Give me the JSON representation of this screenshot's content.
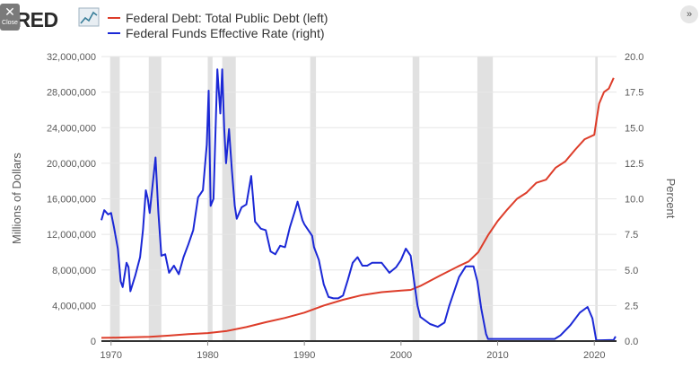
{
  "header": {
    "logo_text": "FRED",
    "close_label": "Close",
    "close_glyph": "✕",
    "expand_glyph": "»"
  },
  "chart_data": {
    "type": "line",
    "title": "",
    "xlabel": "",
    "ylabel_left": "Millions of Dollars",
    "ylabel_right": "Percent",
    "xlim": [
      1969.0,
      2022.3
    ],
    "ylim_left": [
      0,
      32000000
    ],
    "ylim_right": [
      0,
      20
    ],
    "x_ticks": [
      1970,
      1980,
      1990,
      2000,
      2010,
      2020
    ],
    "y_left_ticks": [
      "0",
      "4,000,000",
      "8,000,000",
      "12,000,000",
      "16,000,000",
      "20,000,000",
      "24,000,000",
      "28,000,000",
      "32,000,000"
    ],
    "y_right_ticks": [
      "0.0",
      "2.5",
      "5.0",
      "7.5",
      "10.0",
      "12.5",
      "15.0",
      "17.5",
      "20.0"
    ],
    "grid": true,
    "legend_position": "top-left",
    "recessions": [
      [
        1969.9,
        1970.9
      ],
      [
        1973.9,
        1975.2
      ],
      [
        1980.0,
        1980.5
      ],
      [
        1981.5,
        1982.9
      ],
      [
        1990.6,
        1991.2
      ],
      [
        2001.2,
        2001.9
      ],
      [
        2007.9,
        2009.5
      ],
      [
        2020.1,
        2020.35
      ]
    ],
    "series": [
      {
        "name": "Federal Debt: Total Public Debt (left)",
        "axis": "left",
        "color": "#dd3d2a",
        "points": [
          [
            1969,
            360000
          ],
          [
            1970,
            375000
          ],
          [
            1972,
            430000
          ],
          [
            1974,
            480000
          ],
          [
            1976,
            620000
          ],
          [
            1978,
            780000
          ],
          [
            1980,
            900000
          ],
          [
            1982,
            1140000
          ],
          [
            1984,
            1570000
          ],
          [
            1986,
            2120000
          ],
          [
            1988,
            2600000
          ],
          [
            1990,
            3200000
          ],
          [
            1992,
            4000000
          ],
          [
            1994,
            4640000
          ],
          [
            1996,
            5180000
          ],
          [
            1998,
            5500000
          ],
          [
            2000,
            5670000
          ],
          [
            2001,
            5750000
          ],
          [
            2002,
            6200000
          ],
          [
            2004,
            7350000
          ],
          [
            2006,
            8450000
          ],
          [
            2007,
            8950000
          ],
          [
            2008,
            10000000
          ],
          [
            2009,
            11900000
          ],
          [
            2010,
            13500000
          ],
          [
            2011,
            14800000
          ],
          [
            2012,
            16000000
          ],
          [
            2013,
            16700000
          ],
          [
            2014,
            17800000
          ],
          [
            2015,
            18150000
          ],
          [
            2016,
            19500000
          ],
          [
            2017,
            20200000
          ],
          [
            2018,
            21500000
          ],
          [
            2019,
            22700000
          ],
          [
            2020.0,
            23200000
          ],
          [
            2020.25,
            25000000
          ],
          [
            2020.5,
            26700000
          ],
          [
            2021,
            28000000
          ],
          [
            2021.5,
            28400000
          ],
          [
            2022,
            29600000
          ]
        ]
      },
      {
        "name": "Federal Funds Effective Rate (right)",
        "axis": "right",
        "color": "#1b28d6",
        "points": [
          [
            1969.0,
            8.5
          ],
          [
            1969.3,
            9.2
          ],
          [
            1969.7,
            8.9
          ],
          [
            1970.0,
            9.0
          ],
          [
            1970.3,
            8.0
          ],
          [
            1970.7,
            6.5
          ],
          [
            1971.0,
            4.2
          ],
          [
            1971.2,
            3.8
          ],
          [
            1971.6,
            5.5
          ],
          [
            1971.8,
            5.2
          ],
          [
            1972.0,
            3.5
          ],
          [
            1972.5,
            4.6
          ],
          [
            1973.0,
            5.9
          ],
          [
            1973.3,
            7.8
          ],
          [
            1973.6,
            10.6
          ],
          [
            1973.8,
            10.0
          ],
          [
            1974.0,
            9.0
          ],
          [
            1974.3,
            11.0
          ],
          [
            1974.6,
            12.9
          ],
          [
            1974.9,
            9.0
          ],
          [
            1975.2,
            6.0
          ],
          [
            1975.6,
            6.1
          ],
          [
            1976.0,
            4.8
          ],
          [
            1976.5,
            5.3
          ],
          [
            1977.0,
            4.7
          ],
          [
            1977.5,
            5.9
          ],
          [
            1978.0,
            6.8
          ],
          [
            1978.5,
            7.8
          ],
          [
            1979.0,
            10.1
          ],
          [
            1979.5,
            10.6
          ],
          [
            1979.9,
            13.8
          ],
          [
            1980.1,
            17.6
          ],
          [
            1980.3,
            9.5
          ],
          [
            1980.6,
            10.0
          ],
          [
            1980.9,
            17.0
          ],
          [
            1981.0,
            19.1
          ],
          [
            1981.3,
            16.0
          ],
          [
            1981.5,
            19.1
          ],
          [
            1981.7,
            15.0
          ],
          [
            1981.9,
            12.5
          ],
          [
            1982.2,
            14.9
          ],
          [
            1982.5,
            12.0
          ],
          [
            1982.8,
            9.5
          ],
          [
            1983.0,
            8.6
          ],
          [
            1983.5,
            9.4
          ],
          [
            1984.0,
            9.6
          ],
          [
            1984.5,
            11.6
          ],
          [
            1984.9,
            8.4
          ],
          [
            1985.5,
            7.9
          ],
          [
            1986.0,
            7.8
          ],
          [
            1986.5,
            6.3
          ],
          [
            1987.0,
            6.1
          ],
          [
            1987.5,
            6.7
          ],
          [
            1988.0,
            6.6
          ],
          [
            1988.5,
            8.0
          ],
          [
            1989.0,
            9.1
          ],
          [
            1989.3,
            9.8
          ],
          [
            1989.8,
            8.5
          ],
          [
            1990.0,
            8.2
          ],
          [
            1990.8,
            7.4
          ],
          [
            1991.0,
            6.6
          ],
          [
            1991.5,
            5.7
          ],
          [
            1992.0,
            4.0
          ],
          [
            1992.5,
            3.1
          ],
          [
            1993.0,
            3.0
          ],
          [
            1993.5,
            3.0
          ],
          [
            1994.0,
            3.2
          ],
          [
            1994.5,
            4.3
          ],
          [
            1995.0,
            5.5
          ],
          [
            1995.5,
            5.9
          ],
          [
            1996.0,
            5.3
          ],
          [
            1996.5,
            5.3
          ],
          [
            1997.0,
            5.5
          ],
          [
            1998.0,
            5.5
          ],
          [
            1998.8,
            4.8
          ],
          [
            1999.5,
            5.2
          ],
          [
            2000.0,
            5.7
          ],
          [
            2000.5,
            6.5
          ],
          [
            2001.0,
            6.0
          ],
          [
            2001.3,
            4.5
          ],
          [
            2001.7,
            2.5
          ],
          [
            2002.0,
            1.7
          ],
          [
            2003.0,
            1.2
          ],
          [
            2003.8,
            1.0
          ],
          [
            2004.5,
            1.3
          ],
          [
            2005.0,
            2.5
          ],
          [
            2006.0,
            4.5
          ],
          [
            2006.7,
            5.25
          ],
          [
            2007.5,
            5.25
          ],
          [
            2007.9,
            4.2
          ],
          [
            2008.3,
            2.3
          ],
          [
            2008.8,
            0.5
          ],
          [
            2009.0,
            0.15
          ],
          [
            2015.9,
            0.15
          ],
          [
            2016.5,
            0.4
          ],
          [
            2017.5,
            1.1
          ],
          [
            2018.5,
            2.0
          ],
          [
            2019.3,
            2.4
          ],
          [
            2019.8,
            1.6
          ],
          [
            2020.2,
            0.05
          ],
          [
            2022.0,
            0.08
          ],
          [
            2022.2,
            0.33
          ]
        ]
      }
    ]
  }
}
